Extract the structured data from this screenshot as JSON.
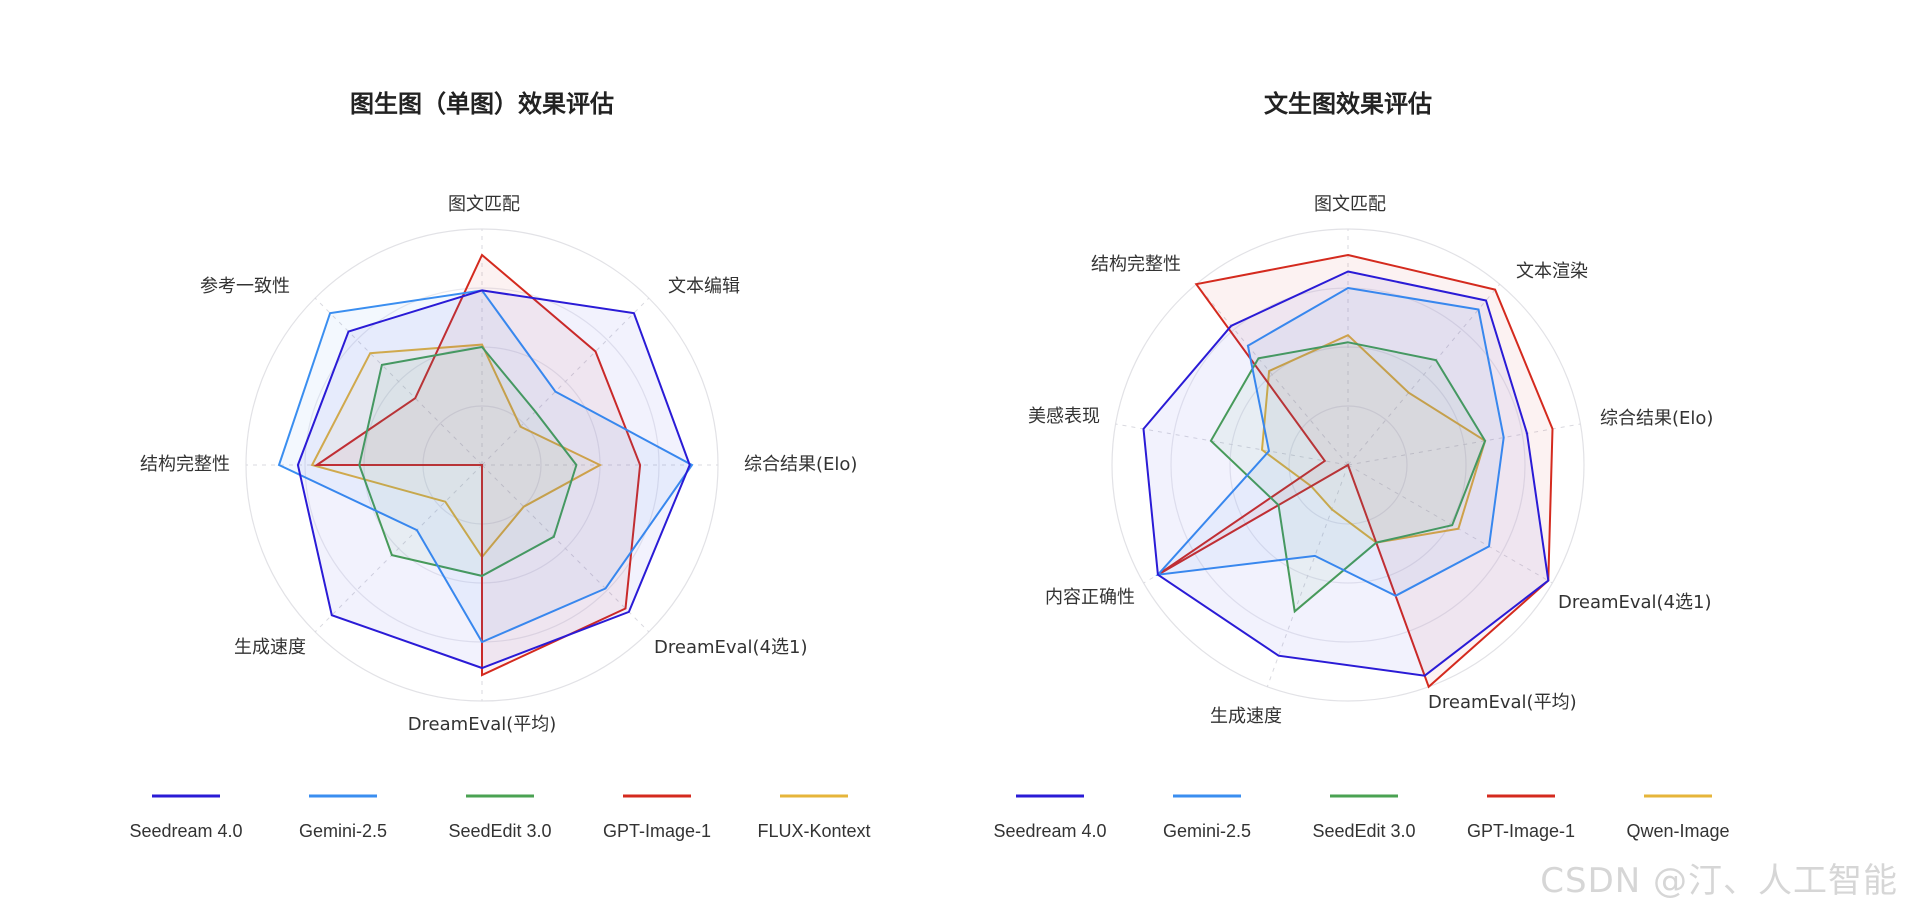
{
  "watermark": "CSDN @汀、人工智能",
  "chart_data": [
    {
      "type": "radar",
      "title": "图生图（单图）效果评估",
      "axes": [
        "图文匹配",
        "文本编辑",
        "综合结果(Elo)",
        "DreamEval(4选1)",
        "DreamEval(平均)",
        "生成速度",
        "结构完整性",
        "参考一致性"
      ],
      "rings": 4,
      "grid": true,
      "legend_position": "bottom",
      "series": [
        {
          "name": "Seedream 4.0",
          "color": "#2a1bd6",
          "values": [
            0.74,
            0.91,
            0.88,
            0.88,
            0.86,
            0.9,
            0.78,
            0.8
          ]
        },
        {
          "name": "Gemini-2.5",
          "color": "#3a8ef0",
          "values": [
            0.74,
            0.44,
            0.89,
            0.74,
            0.75,
            0.39,
            0.86,
            0.91
          ]
        },
        {
          "name": "SeedEdit 3.0",
          "color": "#4aa252",
          "values": [
            0.5,
            0.32,
            0.4,
            0.43,
            0.47,
            0.54,
            0.52,
            0.6
          ]
        },
        {
          "name": "GPT-Image-1",
          "color": "#d42a1e",
          "values": [
            0.89,
            0.68,
            0.67,
            0.86,
            0.89,
            0.0,
            0.7,
            0.4
          ]
        },
        {
          "name": "FLUX-Kontext",
          "color": "#e6b53a",
          "values": [
            0.51,
            0.23,
            0.5,
            0.25,
            0.39,
            0.22,
            0.72,
            0.67
          ]
        }
      ]
    },
    {
      "type": "radar",
      "title": "文生图效果评估",
      "axes": [
        "图文匹配",
        "文本渲染",
        "综合结果(Elo)",
        "DreamEval(4选1)",
        "DreamEval(平均)",
        "生成速度",
        "内容正确性",
        "美感表现",
        "结构完整性"
      ],
      "rings": 4,
      "grid": true,
      "legend_position": "bottom",
      "series": [
        {
          "name": "Seedream 4.0",
          "color": "#2a1bd6",
          "values": [
            0.82,
            0.91,
            0.77,
            0.98,
            0.95,
            0.86,
            0.93,
            0.88,
            0.77
          ]
        },
        {
          "name": "Gemini-2.5",
          "color": "#3a8ef0",
          "values": [
            0.75,
            0.86,
            0.67,
            0.69,
            0.59,
            0.41,
            0.93,
            0.34,
            0.66
          ]
        },
        {
          "name": "SeedEdit 3.0",
          "color": "#4aa252",
          "values": [
            0.52,
            0.58,
            0.59,
            0.51,
            0.35,
            0.66,
            0.34,
            0.59,
            0.59
          ]
        },
        {
          "name": "GPT-Image-1",
          "color": "#d42a1e",
          "values": [
            0.89,
            0.97,
            0.88,
            0.98,
            1.0,
            0.0,
            0.93,
            0.1,
            1.0
          ]
        },
        {
          "name": "Qwen-Image",
          "color": "#e6b53a",
          "values": [
            0.55,
            0.4,
            0.59,
            0.54,
            0.35,
            0.2,
            0.18,
            0.37,
            0.52
          ]
        }
      ]
    }
  ]
}
